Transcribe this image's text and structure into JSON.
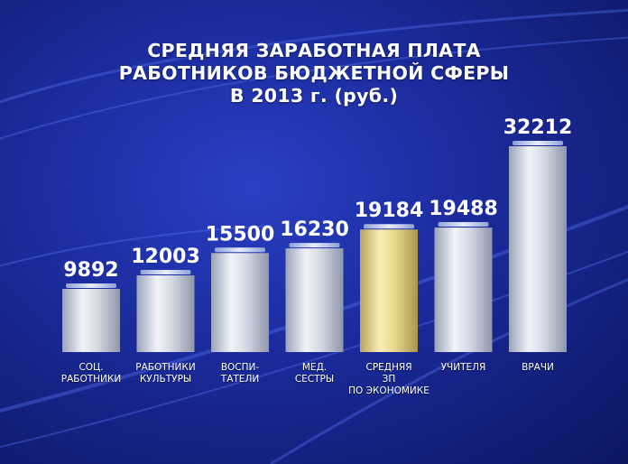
{
  "colors": {
    "bar_silver": "#dfe3ec",
    "bar_gold": "#e9dc95",
    "highlight_category": "средняя зп по экономике"
  },
  "chart_data": {
    "type": "bar",
    "title": [
      "СРЕДНЯЯ ЗАРАБОТНАЯ ПЛАТА",
      "РАБОТНИКОВ БЮДЖЕТНОЙ СФЕРЫ",
      "В 2013 г. (руб.)"
    ],
    "categories": [
      [
        "соц.",
        "работники"
      ],
      [
        "работники",
        "культуры"
      ],
      [
        "воспи-",
        "татели"
      ],
      [
        "мед.",
        "сестры"
      ],
      [
        "средняя",
        "зп",
        "по экономике"
      ],
      [
        "учителя"
      ],
      [
        "врачи"
      ]
    ],
    "values": [
      9892,
      12003,
      15500,
      16230,
      19184,
      19488,
      32212
    ],
    "data_labels": [
      "9892",
      "12003",
      "15500",
      "16230",
      "19184",
      "19488",
      "32212"
    ],
    "ylim": [
      0,
      32212
    ],
    "grid": false,
    "legend": "none"
  }
}
